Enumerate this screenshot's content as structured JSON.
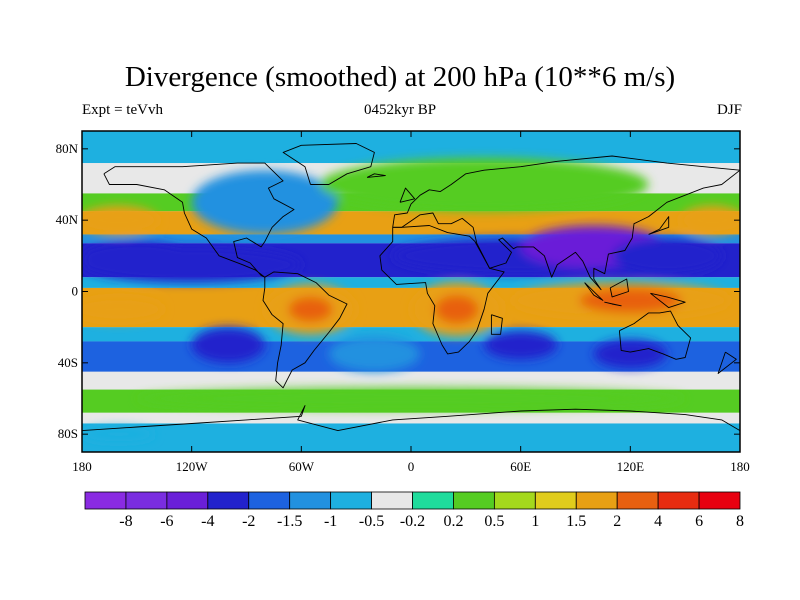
{
  "title": "Divergence (smoothed) at 200 hPa (10**6 m/s)",
  "left_label": "Expt = teVvh",
  "center_label": "0452kyr BP",
  "right_label": "DJF",
  "lat_ticks": [
    {
      "label": "80N",
      "lat": 80
    },
    {
      "label": "40N",
      "lat": 40
    },
    {
      "label": "0",
      "lat": 0
    },
    {
      "label": "40S",
      "lat": -40
    },
    {
      "label": "80S",
      "lat": -80
    }
  ],
  "lon_ticks": [
    {
      "label": "180",
      "lon": -180
    },
    {
      "label": "120W",
      "lon": -120
    },
    {
      "label": "60W",
      "lon": -60
    },
    {
      "label": "0",
      "lon": 0
    },
    {
      "label": "60E",
      "lon": 60
    },
    {
      "label": "120E",
      "lon": 120
    },
    {
      "label": "180",
      "lon": 180
    }
  ],
  "colorbar": {
    "colors": [
      "#8a2be2",
      "#7a2de0",
      "#6a1fd8",
      "#2222cc",
      "#1d62e0",
      "#2291e0",
      "#1eb0e0",
      "#e8e8e8",
      "#1fdc9c",
      "#55cc22",
      "#a4d81c",
      "#e0cc1c",
      "#e8a014",
      "#e86010",
      "#e82c10",
      "#e80010"
    ],
    "labels": [
      "-8",
      "-6",
      "-4",
      "-2",
      "-1.5",
      "-1",
      "-0.5",
      "-0.2",
      "0.2",
      "0.5",
      "1",
      "1.5",
      "2",
      "4",
      "6",
      "8"
    ]
  },
  "regions": [
    {
      "lon": -120,
      "lat": 15,
      "rlon": 60,
      "rlat": 10,
      "color": "#2222cc"
    },
    {
      "lon": -150,
      "lat": 20,
      "rlon": 30,
      "rlat": 8,
      "color": "#2222cc"
    },
    {
      "lon": 60,
      "lat": 20,
      "rlon": 70,
      "rlat": 10,
      "color": "#2222cc"
    },
    {
      "lon": 100,
      "lat": 25,
      "rlon": 40,
      "rlat": 12,
      "color": "#6a1fd8"
    },
    {
      "lon": 140,
      "lat": 20,
      "rlon": 30,
      "rlat": 10,
      "color": "#2222cc"
    },
    {
      "lon": -55,
      "lat": -10,
      "rlon": 25,
      "rlat": 14,
      "color": "#e8a014"
    },
    {
      "lon": -55,
      "lat": -10,
      "rlon": 12,
      "rlat": 7,
      "color": "#e86010"
    },
    {
      "lon": 25,
      "lat": -10,
      "rlon": 25,
      "rlat": 15,
      "color": "#e8a014"
    },
    {
      "lon": 25,
      "lat": -10,
      "rlon": 12,
      "rlat": 8,
      "color": "#e86010"
    },
    {
      "lon": 115,
      "lat": -5,
      "rlon": 60,
      "rlat": 10,
      "color": "#e8a014"
    },
    {
      "lon": 120,
      "lat": -5,
      "rlon": 28,
      "rlat": 7,
      "color": "#e86010"
    },
    {
      "lon": -160,
      "lat": -10,
      "rlon": 25,
      "rlat": 7,
      "color": "#e8a014"
    },
    {
      "lon": 165,
      "lat": 40,
      "rlon": 18,
      "rlat": 8,
      "color": "#e8a014"
    },
    {
      "lon": -160,
      "lat": 40,
      "rlon": 22,
      "rlat": 8,
      "color": "#e8a014"
    },
    {
      "lon": -80,
      "lat": 50,
      "rlon": 40,
      "rlat": 18,
      "color": "#2291e0"
    },
    {
      "lon": 40,
      "lat": 60,
      "rlon": 90,
      "rlat": 15,
      "color": "#55cc22"
    },
    {
      "lon": -100,
      "lat": -30,
      "rlon": 20,
      "rlat": 10,
      "color": "#2222cc"
    },
    {
      "lon": 60,
      "lat": -30,
      "rlon": 20,
      "rlat": 8,
      "color": "#2222cc"
    },
    {
      "lon": 120,
      "lat": -35,
      "rlon": 20,
      "rlat": 8,
      "color": "#2222cc"
    },
    {
      "lon": -20,
      "lat": -35,
      "rlon": 25,
      "rlat": 10,
      "color": "#2291e0"
    },
    {
      "lon": 0,
      "lat": -60,
      "rlon": 150,
      "rlat": 6,
      "color": "#55cc22"
    },
    {
      "lon": -160,
      "lat": -80,
      "rlon": 20,
      "rlat": 4,
      "color": "#1eb0e0"
    }
  ],
  "coast": [
    [
      [
        -168,
        66
      ],
      [
        -162,
        70
      ],
      [
        -140,
        70
      ],
      [
        -125,
        70
      ],
      [
        -95,
        72
      ],
      [
        -80,
        72
      ],
      [
        -70,
        62
      ],
      [
        -78,
        58
      ],
      [
        -75,
        52
      ],
      [
        -64,
        46
      ],
      [
        -70,
        42
      ],
      [
        -76,
        36
      ],
      [
        -80,
        28
      ],
      [
        -82,
        25
      ],
      [
        -90,
        30
      ],
      [
        -97,
        28
      ],
      [
        -95,
        19
      ],
      [
        -88,
        16
      ],
      [
        -82,
        9
      ],
      [
        -80,
        8
      ],
      [
        -85,
        12
      ],
      [
        -92,
        15
      ],
      [
        -105,
        20
      ],
      [
        -112,
        30
      ],
      [
        -120,
        35
      ],
      [
        -124,
        44
      ],
      [
        -125,
        50
      ],
      [
        -135,
        57
      ],
      [
        -150,
        60
      ],
      [
        -165,
        60
      ],
      [
        -168,
        66
      ]
    ],
    [
      [
        -80,
        8
      ],
      [
        -75,
        11
      ],
      [
        -62,
        10
      ],
      [
        -52,
        5
      ],
      [
        -45,
        -2
      ],
      [
        -35,
        -7
      ],
      [
        -39,
        -15
      ],
      [
        -45,
        -23
      ],
      [
        -53,
        -33
      ],
      [
        -58,
        -40
      ],
      [
        -65,
        -44
      ],
      [
        -68,
        -50
      ],
      [
        -70,
        -54
      ],
      [
        -74,
        -50
      ],
      [
        -73,
        -40
      ],
      [
        -71,
        -30
      ],
      [
        -70,
        -18
      ],
      [
        -76,
        -13
      ],
      [
        -81,
        -5
      ],
      [
        -80,
        2
      ],
      [
        -80,
        8
      ]
    ],
    [
      [
        -10,
        36
      ],
      [
        -5,
        36
      ],
      [
        10,
        37
      ],
      [
        20,
        33
      ],
      [
        32,
        31
      ],
      [
        35,
        28
      ],
      [
        43,
        13
      ],
      [
        51,
        11
      ],
      [
        42,
        -1
      ],
      [
        40,
        -10
      ],
      [
        36,
        -22
      ],
      [
        32,
        -28
      ],
      [
        26,
        -34
      ],
      [
        20,
        -35
      ],
      [
        17,
        -30
      ],
      [
        12,
        -18
      ],
      [
        13,
        -8
      ],
      [
        9,
        -1
      ],
      [
        8,
        5
      ],
      [
        -8,
        4
      ],
      [
        -16,
        12
      ],
      [
        -17,
        20
      ],
      [
        -10,
        28
      ],
      [
        -10,
        36
      ]
    ],
    [
      [
        -10,
        36
      ],
      [
        -9,
        43
      ],
      [
        -2,
        44
      ],
      [
        0,
        49
      ],
      [
        5,
        54
      ],
      [
        10,
        57
      ],
      [
        16,
        56
      ],
      [
        22,
        60
      ],
      [
        30,
        66
      ],
      [
        40,
        68
      ],
      [
        60,
        70
      ],
      [
        80,
        73
      ],
      [
        110,
        76
      ],
      [
        140,
        72
      ],
      [
        170,
        69
      ],
      [
        180,
        68
      ],
      [
        170,
        60
      ],
      [
        160,
        58
      ],
      [
        140,
        50
      ],
      [
        130,
        42
      ],
      [
        122,
        38
      ],
      [
        121,
        30
      ],
      [
        117,
        23
      ],
      [
        108,
        21
      ],
      [
        106,
        10
      ],
      [
        100,
        13
      ],
      [
        100,
        7
      ],
      [
        104,
        1
      ],
      [
        98,
        8
      ],
      [
        94,
        17
      ],
      [
        90,
        22
      ],
      [
        80,
        15
      ],
      [
        77,
        8
      ],
      [
        73,
        20
      ],
      [
        67,
        25
      ],
      [
        58,
        25
      ],
      [
        56,
        24
      ],
      [
        50,
        30
      ],
      [
        48,
        29
      ],
      [
        55,
        22
      ],
      [
        52,
        16
      ],
      [
        43,
        13
      ],
      [
        36,
        27
      ],
      [
        34,
        36
      ],
      [
        28,
        41
      ],
      [
        22,
        38
      ],
      [
        15,
        38
      ],
      [
        12,
        44
      ],
      [
        5,
        43
      ],
      [
        -5,
        36
      ],
      [
        -10,
        36
      ]
    ],
    [
      [
        114,
        -22
      ],
      [
        122,
        -18
      ],
      [
        130,
        -12
      ],
      [
        136,
        -12
      ],
      [
        142,
        -11
      ],
      [
        146,
        -19
      ],
      [
        153,
        -26
      ],
      [
        150,
        -37
      ],
      [
        145,
        -38
      ],
      [
        138,
        -35
      ],
      [
        130,
        -32
      ],
      [
        120,
        -34
      ],
      [
        115,
        -33
      ],
      [
        114,
        -22
      ]
    ],
    [
      [
        -55,
        60
      ],
      [
        -45,
        60
      ],
      [
        -35,
        66
      ],
      [
        -22,
        70
      ],
      [
        -20,
        78
      ],
      [
        -30,
        83
      ],
      [
        -60,
        82
      ],
      [
        -70,
        78
      ],
      [
        -58,
        70
      ],
      [
        -55,
        60
      ]
    ],
    [
      [
        -180,
        -78
      ],
      [
        -150,
        -76
      ],
      [
        -120,
        -74
      ],
      [
        -90,
        -72
      ],
      [
        -60,
        -70
      ],
      [
        -58,
        -64
      ],
      [
        -62,
        -72
      ],
      [
        -40,
        -78
      ],
      [
        -10,
        -72
      ],
      [
        20,
        -70
      ],
      [
        60,
        -67
      ],
      [
        90,
        -66
      ],
      [
        120,
        -67
      ],
      [
        150,
        -69
      ],
      [
        170,
        -72
      ],
      [
        180,
        -78
      ]
    ],
    [
      [
        44,
        -13
      ],
      [
        50,
        -15
      ],
      [
        49,
        -24
      ],
      [
        44,
        -24
      ],
      [
        44,
        -13
      ]
    ],
    [
      [
        95,
        5
      ],
      [
        105,
        -5
      ],
      [
        100,
        -2
      ],
      [
        95,
        5
      ]
    ],
    [
      [
        110,
        -7
      ],
      [
        115,
        -8
      ],
      [
        106,
        -6
      ],
      [
        110,
        -7
      ]
    ],
    [
      [
        109,
        2
      ],
      [
        118,
        7
      ],
      [
        119,
        0
      ],
      [
        110,
        -3
      ],
      [
        109,
        2
      ]
    ],
    [
      [
        131,
        -1
      ],
      [
        140,
        -3
      ],
      [
        150,
        -6
      ],
      [
        141,
        -9
      ],
      [
        131,
        -1
      ]
    ],
    [
      [
        130,
        32
      ],
      [
        141,
        36
      ],
      [
        141,
        42
      ],
      [
        136,
        35
      ],
      [
        130,
        32
      ]
    ],
    [
      [
        -6,
        50
      ],
      [
        2,
        52
      ],
      [
        -3,
        58
      ],
      [
        -6,
        50
      ]
    ],
    [
      [
        -24,
        64
      ],
      [
        -14,
        65
      ],
      [
        -20,
        66
      ],
      [
        -24,
        64
      ]
    ],
    [
      [
        172,
        -34
      ],
      [
        178,
        -38
      ],
      [
        168,
        -46
      ],
      [
        172,
        -34
      ]
    ]
  ]
}
